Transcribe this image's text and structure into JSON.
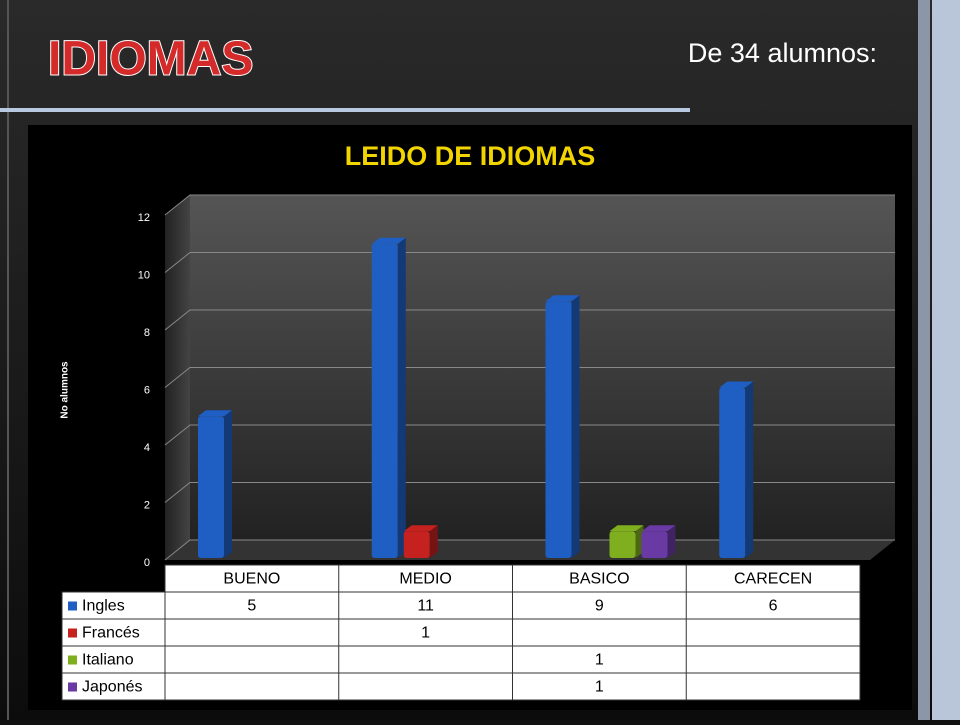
{
  "slide": {
    "title": "IDIOMAS",
    "subtitle": "De 34 alumnos:"
  },
  "chart_data": {
    "type": "bar3d",
    "title": "LEIDO DE IDIOMAS",
    "y_label": "No alumnos",
    "categories": [
      "BUENO",
      "MEDIO",
      "BASICO",
      "CARECEN"
    ],
    "series": [
      {
        "name": "Ingles",
        "color": "#1f5fc4",
        "values": [
          5,
          11,
          9,
          6
        ]
      },
      {
        "name": "Francés",
        "color": "#c4211f",
        "values": [
          null,
          1,
          null,
          null
        ]
      },
      {
        "name": "Italiano",
        "color": "#7fae1f",
        "values": [
          null,
          null,
          1,
          null
        ]
      },
      {
        "name": "Japonés",
        "color": "#6a3aa4",
        "values": [
          null,
          null,
          1,
          null
        ]
      }
    ],
    "ylim": [
      0,
      12
    ],
    "yticks": [
      0,
      2,
      4,
      6,
      8,
      10,
      12
    ],
    "grid": true,
    "legend": "table"
  }
}
